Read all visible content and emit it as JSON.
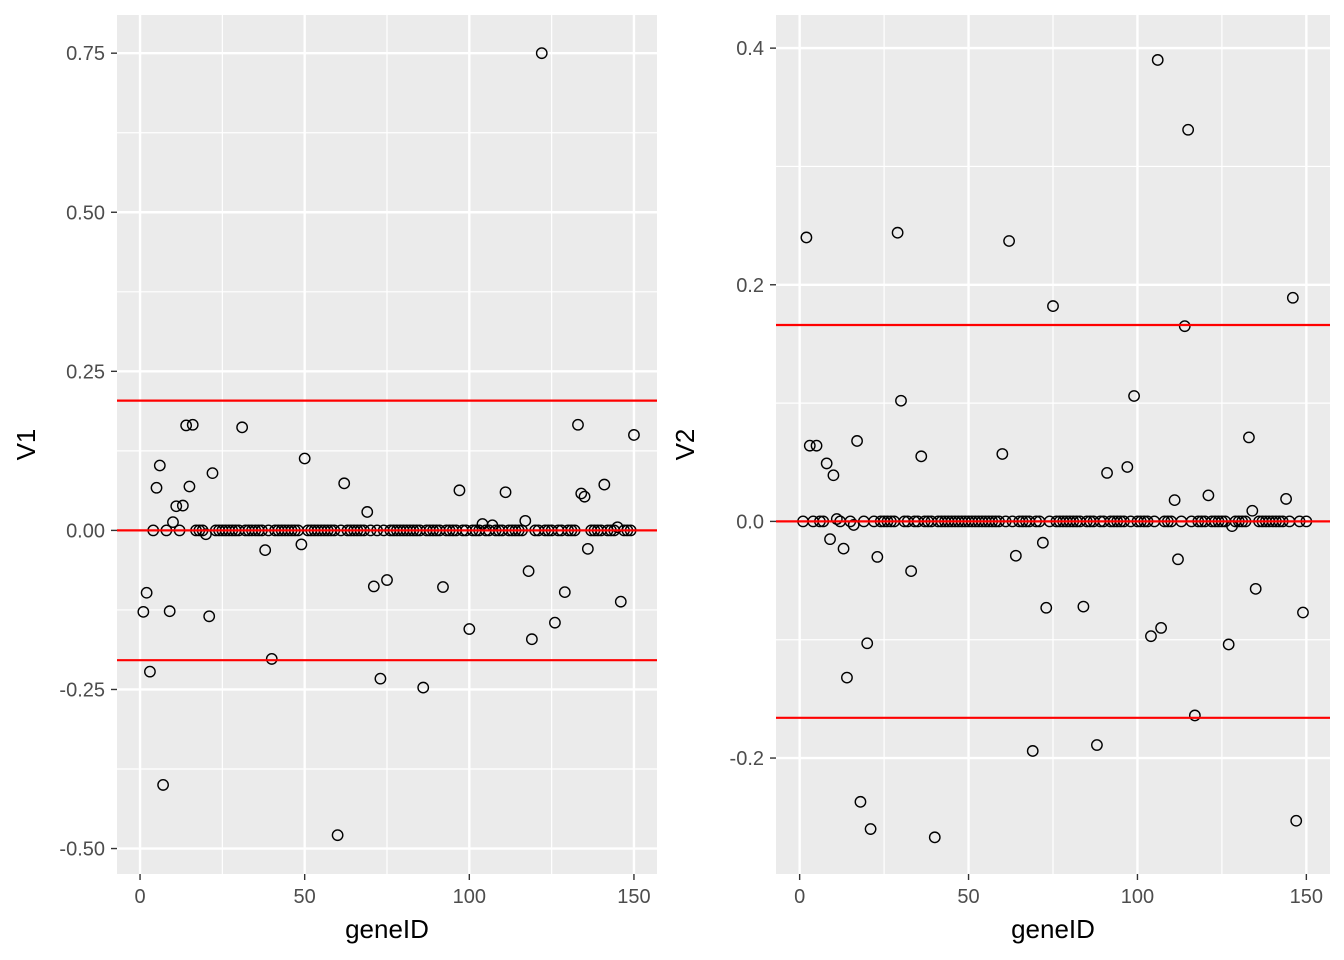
{
  "chart_data": [
    {
      "type": "scatter",
      "xlabel": "geneID",
      "ylabel": "V1",
      "xlim": [
        -7,
        157
      ],
      "ylim": [
        -0.54,
        0.81
      ],
      "x_ticks": [
        0,
        50,
        100,
        150
      ],
      "x_tick_labels": [
        "0",
        "50",
        "100",
        "150"
      ],
      "y_ticks": [
        -0.5,
        -0.25,
        0,
        0.25,
        0.5,
        0.75
      ],
      "y_tick_labels": [
        "-0.50",
        "-0.25",
        "0.00",
        "0.25",
        "0.50",
        "0.75"
      ],
      "grid": true,
      "marker": "open-circle",
      "reference_lines": [
        0.204,
        0,
        -0.204
      ],
      "reference_line_color": "#ff0000",
      "points": [
        [
          1,
          -0.128
        ],
        [
          2,
          -0.098
        ],
        [
          3,
          -0.222
        ],
        [
          4,
          0
        ],
        [
          5,
          0.067
        ],
        [
          6,
          0.102
        ],
        [
          7,
          -0.4
        ],
        [
          8,
          0
        ],
        [
          9,
          -0.127
        ],
        [
          10,
          0.013
        ],
        [
          11,
          0.038
        ],
        [
          12,
          0
        ],
        [
          13,
          0.039
        ],
        [
          14,
          0.165
        ],
        [
          15,
          0.069
        ],
        [
          16,
          0.166
        ],
        [
          17,
          0
        ],
        [
          18,
          0
        ],
        [
          19,
          0
        ],
        [
          20,
          -0.006
        ],
        [
          21,
          -0.135
        ],
        [
          22,
          0.09
        ],
        [
          23,
          0
        ],
        [
          24,
          0
        ],
        [
          25,
          0
        ],
        [
          26,
          0
        ],
        [
          27,
          0
        ],
        [
          28,
          0
        ],
        [
          29,
          0
        ],
        [
          30,
          0
        ],
        [
          31,
          0.162
        ],
        [
          32,
          0
        ],
        [
          33,
          0
        ],
        [
          34,
          0
        ],
        [
          35,
          0
        ],
        [
          36,
          0
        ],
        [
          37,
          0
        ],
        [
          38,
          -0.031
        ],
        [
          39,
          0
        ],
        [
          40,
          -0.202
        ],
        [
          41,
          0
        ],
        [
          42,
          0
        ],
        [
          43,
          0
        ],
        [
          44,
          0
        ],
        [
          45,
          0
        ],
        [
          46,
          0
        ],
        [
          47,
          0
        ],
        [
          48,
          0
        ],
        [
          49,
          -0.022
        ],
        [
          50,
          0.113
        ],
        [
          51,
          0
        ],
        [
          52,
          0
        ],
        [
          53,
          0
        ],
        [
          54,
          0
        ],
        [
          55,
          0
        ],
        [
          56,
          0
        ],
        [
          57,
          0
        ],
        [
          58,
          0
        ],
        [
          59,
          0
        ],
        [
          60,
          -0.479
        ],
        [
          61,
          0
        ],
        [
          62,
          0.074
        ],
        [
          63,
          0
        ],
        [
          64,
          0
        ],
        [
          65,
          0
        ],
        [
          66,
          0
        ],
        [
          67,
          0
        ],
        [
          68,
          0
        ],
        [
          69,
          0.029
        ],
        [
          70,
          0
        ],
        [
          71,
          -0.088
        ],
        [
          72,
          0
        ],
        [
          73,
          -0.233
        ],
        [
          74,
          0
        ],
        [
          75,
          -0.078
        ],
        [
          76,
          0
        ],
        [
          77,
          0
        ],
        [
          78,
          0
        ],
        [
          79,
          0
        ],
        [
          80,
          0
        ],
        [
          81,
          0
        ],
        [
          82,
          0
        ],
        [
          83,
          0
        ],
        [
          84,
          0
        ],
        [
          85,
          0
        ],
        [
          86,
          -0.247
        ],
        [
          87,
          0
        ],
        [
          88,
          0
        ],
        [
          89,
          0
        ],
        [
          90,
          0
        ],
        [
          91,
          0
        ],
        [
          92,
          -0.089
        ],
        [
          93,
          0
        ],
        [
          94,
          0
        ],
        [
          95,
          0
        ],
        [
          96,
          0
        ],
        [
          97,
          0.063
        ],
        [
          98,
          0
        ],
        [
          99,
          0
        ],
        [
          100,
          -0.155
        ],
        [
          101,
          0
        ],
        [
          102,
          0
        ],
        [
          103,
          0
        ],
        [
          104,
          0.01
        ],
        [
          105,
          0
        ],
        [
          106,
          0
        ],
        [
          107,
          0.008
        ],
        [
          108,
          0
        ],
        [
          109,
          0
        ],
        [
          110,
          0
        ],
        [
          111,
          0.06
        ],
        [
          112,
          0
        ],
        [
          113,
          0
        ],
        [
          114,
          0
        ],
        [
          115,
          0
        ],
        [
          116,
          0
        ],
        [
          117,
          0.015
        ],
        [
          118,
          -0.064
        ],
        [
          119,
          -0.171
        ],
        [
          120,
          0
        ],
        [
          121,
          0
        ],
        [
          122,
          0.75
        ],
        [
          123,
          0
        ],
        [
          124,
          0
        ],
        [
          125,
          0
        ],
        [
          126,
          -0.145
        ],
        [
          127,
          0
        ],
        [
          128,
          0
        ],
        [
          129,
          -0.097
        ],
        [
          130,
          0
        ],
        [
          131,
          0
        ],
        [
          132,
          0
        ],
        [
          133,
          0.166
        ],
        [
          134,
          0.058
        ],
        [
          135,
          0.053
        ],
        [
          136,
          -0.029
        ],
        [
          137,
          0
        ],
        [
          138,
          0
        ],
        [
          139,
          0
        ],
        [
          140,
          0
        ],
        [
          141,
          0.072
        ],
        [
          142,
          0
        ],
        [
          143,
          0
        ],
        [
          144,
          0
        ],
        [
          145,
          0.005
        ],
        [
          146,
          -0.112
        ],
        [
          147,
          0
        ],
        [
          148,
          0
        ],
        [
          149,
          0
        ],
        [
          150,
          0.15
        ]
      ]
    },
    {
      "type": "scatter",
      "xlabel": "geneID",
      "ylabel": "V2",
      "xlim": [
        -7,
        157
      ],
      "ylim": [
        -0.298,
        0.428
      ],
      "x_ticks": [
        0,
        50,
        100,
        150
      ],
      "x_tick_labels": [
        "0",
        "50",
        "100",
        "150"
      ],
      "y_ticks": [
        -0.2,
        0,
        0.2,
        0.4
      ],
      "y_tick_labels": [
        "-0.2",
        "0.0",
        "0.2",
        "0.4"
      ],
      "grid": true,
      "marker": "open-circle",
      "reference_lines": [
        0.166,
        0,
        -0.166
      ],
      "reference_line_color": "#ff0000",
      "points": [
        [
          1,
          0
        ],
        [
          2,
          0.24
        ],
        [
          3,
          0.064
        ],
        [
          4,
          0
        ],
        [
          5,
          0.064
        ],
        [
          6,
          0
        ],
        [
          7,
          0
        ],
        [
          8,
          0.049
        ],
        [
          9,
          -0.015
        ],
        [
          10,
          0.039
        ],
        [
          11,
          0.002
        ],
        [
          12,
          0
        ],
        [
          13,
          -0.023
        ],
        [
          14,
          -0.132
        ],
        [
          15,
          0
        ],
        [
          16,
          -0.003
        ],
        [
          17,
          0.068
        ],
        [
          18,
          -0.237
        ],
        [
          19,
          0
        ],
        [
          20,
          -0.103
        ],
        [
          21,
          -0.26
        ],
        [
          22,
          0
        ],
        [
          23,
          -0.03
        ],
        [
          24,
          0
        ],
        [
          25,
          0
        ],
        [
          26,
          0
        ],
        [
          27,
          0
        ],
        [
          28,
          0
        ],
        [
          29,
          0.244
        ],
        [
          30,
          0.102
        ],
        [
          31,
          0
        ],
        [
          32,
          0
        ],
        [
          33,
          -0.042
        ],
        [
          34,
          0
        ],
        [
          35,
          0
        ],
        [
          36,
          0.055
        ],
        [
          37,
          0
        ],
        [
          38,
          0
        ],
        [
          39,
          0
        ],
        [
          40,
          -0.267
        ],
        [
          41,
          0
        ],
        [
          42,
          0
        ],
        [
          43,
          0
        ],
        [
          44,
          0
        ],
        [
          45,
          0
        ],
        [
          46,
          0
        ],
        [
          47,
          0
        ],
        [
          48,
          0
        ],
        [
          49,
          0
        ],
        [
          50,
          0
        ],
        [
          51,
          0
        ],
        [
          52,
          0
        ],
        [
          53,
          0
        ],
        [
          54,
          0
        ],
        [
          55,
          0
        ],
        [
          56,
          0
        ],
        [
          57,
          0
        ],
        [
          58,
          0
        ],
        [
          59,
          0
        ],
        [
          60,
          0.057
        ],
        [
          61,
          0
        ],
        [
          62,
          0.237
        ],
        [
          63,
          0
        ],
        [
          64,
          -0.029
        ],
        [
          65,
          0
        ],
        [
          66,
          0
        ],
        [
          67,
          0
        ],
        [
          68,
          0
        ],
        [
          69,
          -0.194
        ],
        [
          70,
          0
        ],
        [
          71,
          0
        ],
        [
          72,
          -0.018
        ],
        [
          73,
          -0.073
        ],
        [
          74,
          0
        ],
        [
          75,
          0.182
        ],
        [
          76,
          0
        ],
        [
          77,
          0
        ],
        [
          78,
          0
        ],
        [
          79,
          0
        ],
        [
          80,
          0
        ],
        [
          81,
          0
        ],
        [
          82,
          0
        ],
        [
          83,
          0
        ],
        [
          84,
          -0.072
        ],
        [
          85,
          0
        ],
        [
          86,
          0
        ],
        [
          87,
          0
        ],
        [
          88,
          -0.189
        ],
        [
          89,
          0
        ],
        [
          90,
          0
        ],
        [
          91,
          0.041
        ],
        [
          92,
          0
        ],
        [
          93,
          0
        ],
        [
          94,
          0
        ],
        [
          95,
          0
        ],
        [
          96,
          0
        ],
        [
          97,
          0.046
        ],
        [
          98,
          0
        ],
        [
          99,
          0.106
        ],
        [
          100,
          0
        ],
        [
          101,
          0
        ],
        [
          102,
          0
        ],
        [
          103,
          0
        ],
        [
          104,
          -0.097
        ],
        [
          105,
          0
        ],
        [
          106,
          0.39
        ],
        [
          107,
          -0.09
        ],
        [
          108,
          0
        ],
        [
          109,
          0
        ],
        [
          110,
          0
        ],
        [
          111,
          0.018
        ],
        [
          112,
          -0.032
        ],
        [
          113,
          0
        ],
        [
          114,
          0.165
        ],
        [
          115,
          0.331
        ],
        [
          116,
          0
        ],
        [
          117,
          -0.164
        ],
        [
          118,
          0
        ],
        [
          119,
          0
        ],
        [
          120,
          0
        ],
        [
          121,
          0.022
        ],
        [
          122,
          0
        ],
        [
          123,
          0
        ],
        [
          124,
          0
        ],
        [
          125,
          0
        ],
        [
          126,
          0
        ],
        [
          127,
          -0.104
        ],
        [
          128,
          -0.004
        ],
        [
          129,
          0
        ],
        [
          130,
          0
        ],
        [
          131,
          0
        ],
        [
          132,
          0
        ],
        [
          133,
          0.071
        ],
        [
          134,
          0.009
        ],
        [
          135,
          -0.057
        ],
        [
          136,
          0
        ],
        [
          137,
          0
        ],
        [
          138,
          0
        ],
        [
          139,
          0
        ],
        [
          140,
          0
        ],
        [
          141,
          0
        ],
        [
          142,
          0
        ],
        [
          143,
          0
        ],
        [
          144,
          0.019
        ],
        [
          145,
          0
        ],
        [
          146,
          0.189
        ],
        [
          147,
          -0.253
        ],
        [
          148,
          0
        ],
        [
          149,
          -0.077
        ],
        [
          150,
          0
        ]
      ]
    }
  ]
}
